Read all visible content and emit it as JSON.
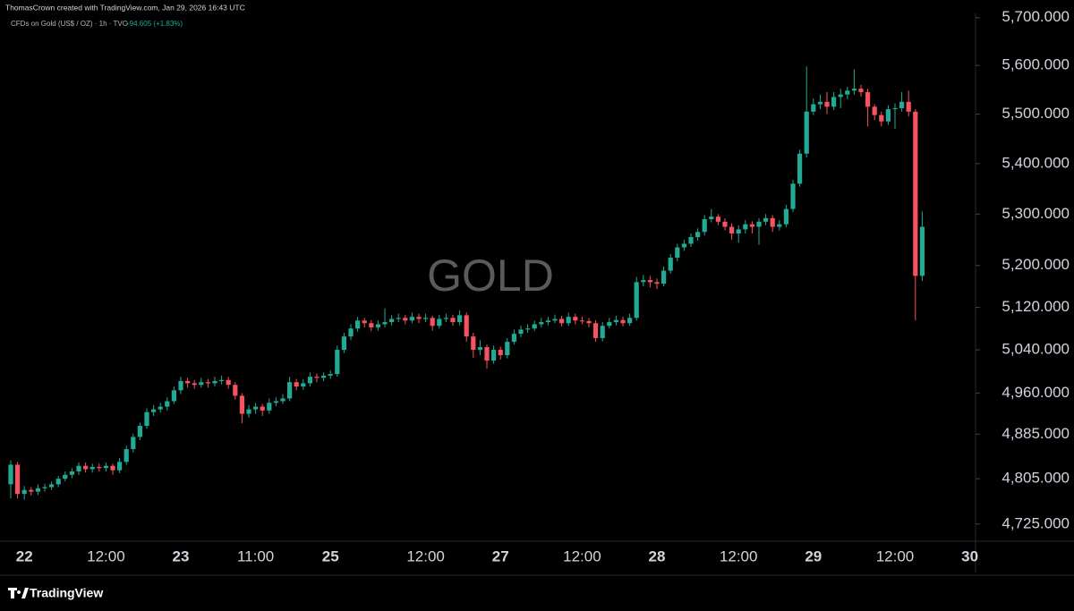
{
  "header": {
    "credit": "ThomasCrown created with TradingView.com, Jan 29, 2026 16:43 UTC",
    "symbol": "CFDs on Gold (US$ / OZ) · 1h · TVC",
    "change": "+94.605 (+1.83%)"
  },
  "footer": {
    "brand": "TradingView"
  },
  "chart_data": {
    "type": "candlestick",
    "title": "GOLD",
    "up_color": "#22ab94",
    "down_color": "#f7525f",
    "log_scale": true,
    "ylim": [
      4695,
      5709
    ],
    "yticks": [
      {
        "value": 4725,
        "label": "4,725.000"
      },
      {
        "value": 4805,
        "label": "4,805.000"
      },
      {
        "value": 4885,
        "label": "4,885.000"
      },
      {
        "value": 4960,
        "label": "4,960.000"
      },
      {
        "value": 5040,
        "label": "5,040.000"
      },
      {
        "value": 5120,
        "label": "5,120.000"
      },
      {
        "value": 5200,
        "label": "5,200.000"
      },
      {
        "value": 5300,
        "label": "5,300.000"
      },
      {
        "value": 5400,
        "label": "5,400.000"
      },
      {
        "value": 5500,
        "label": "5,500.000"
      },
      {
        "value": 5600,
        "label": "5,600.000"
      },
      {
        "value": 5700,
        "label": "5,700.000"
      }
    ],
    "categories": [
      null,
      null,
      "22",
      null,
      null,
      null,
      null,
      null,
      null,
      null,
      null,
      null,
      null,
      null,
      "12:00",
      null,
      null,
      null,
      null,
      null,
      null,
      null,
      null,
      null,
      null,
      "23",
      null,
      null,
      null,
      null,
      null,
      null,
      null,
      null,
      null,
      null,
      "11:00",
      null,
      null,
      null,
      null,
      null,
      null,
      null,
      null,
      null,
      null,
      "25",
      null,
      null,
      null,
      null,
      null,
      null,
      null,
      null,
      null,
      null,
      null,
      null,
      null,
      "12:00",
      null,
      null,
      null,
      null,
      null,
      null,
      null,
      null,
      null,
      null,
      "27",
      null,
      null,
      null,
      null,
      null,
      null,
      null,
      null,
      null,
      null,
      null,
      "12:00",
      null,
      null,
      null,
      null,
      null,
      null,
      null,
      null,
      null,
      null,
      "28",
      null,
      null,
      null,
      null,
      null,
      null,
      null,
      null,
      null,
      null,
      null,
      "12:00",
      null,
      null,
      null,
      null,
      null,
      null,
      null,
      null,
      null,
      null,
      "29",
      null,
      null,
      null,
      null,
      null,
      null,
      null,
      null,
      null,
      null,
      null,
      "12:00",
      null,
      null,
      null,
      null,
      null,
      null,
      null,
      null,
      null,
      null,
      "30"
    ],
    "ohlc": [
      [
        4795,
        4838,
        4770,
        4830
      ],
      [
        4830,
        4835,
        4770,
        4778
      ],
      [
        4778,
        4792,
        4768,
        4785
      ],
      [
        4785,
        4790,
        4775,
        4782
      ],
      [
        4782,
        4795,
        4776,
        4788
      ],
      [
        4788,
        4796,
        4782,
        4790
      ],
      [
        4790,
        4800,
        4785,
        4795
      ],
      [
        4795,
        4810,
        4790,
        4805
      ],
      [
        4805,
        4818,
        4800,
        4812
      ],
      [
        4812,
        4824,
        4806,
        4818
      ],
      [
        4818,
        4834,
        4812,
        4828
      ],
      [
        4828,
        4834,
        4816,
        4822
      ],
      [
        4822,
        4832,
        4816,
        4826
      ],
      [
        4826,
        4832,
        4818,
        4824
      ],
      [
        4824,
        4834,
        4818,
        4828
      ],
      [
        4828,
        4832,
        4812,
        4820
      ],
      [
        4820,
        4842,
        4815,
        4835
      ],
      [
        4835,
        4864,
        4830,
        4858
      ],
      [
        4858,
        4886,
        4852,
        4880
      ],
      [
        4880,
        4906,
        4874,
        4900
      ],
      [
        4900,
        4932,
        4895,
        4925
      ],
      [
        4925,
        4938,
        4918,
        4930
      ],
      [
        4930,
        4942,
        4924,
        4935
      ],
      [
        4935,
        4952,
        4928,
        4945
      ],
      [
        4945,
        4972,
        4940,
        4965
      ],
      [
        4965,
        4990,
        4958,
        4982
      ],
      [
        4982,
        4988,
        4970,
        4978
      ],
      [
        4978,
        4984,
        4968,
        4975
      ],
      [
        4975,
        4988,
        4970,
        4980
      ],
      [
        4980,
        4986,
        4970,
        4978
      ],
      [
        4978,
        4990,
        4972,
        4982
      ],
      [
        4982,
        4992,
        4976,
        4984
      ],
      [
        4984,
        4990,
        4968,
        4975
      ],
      [
        4975,
        4980,
        4948,
        4955
      ],
      [
        4955,
        4960,
        4905,
        4922
      ],
      [
        4922,
        4938,
        4915,
        4930
      ],
      [
        4930,
        4942,
        4922,
        4935
      ],
      [
        4935,
        4940,
        4918,
        4928
      ],
      [
        4928,
        4950,
        4922,
        4942
      ],
      [
        4942,
        4952,
        4936,
        4945
      ],
      [
        4945,
        4958,
        4940,
        4950
      ],
      [
        4950,
        4990,
        4945,
        4980
      ],
      [
        4980,
        4986,
        4965,
        4972
      ],
      [
        4972,
        4986,
        4966,
        4978
      ],
      [
        4978,
        4998,
        4972,
        4990
      ],
      [
        4990,
        4996,
        4980,
        4988
      ],
      [
        4988,
        4998,
        4982,
        4992
      ],
      [
        4992,
        5002,
        4986,
        4995
      ],
      [
        4995,
        5048,
        4990,
        5040
      ],
      [
        5040,
        5072,
        5034,
        5065
      ],
      [
        5065,
        5088,
        5058,
        5080
      ],
      [
        5080,
        5102,
        5074,
        5095
      ],
      [
        5095,
        5100,
        5082,
        5090
      ],
      [
        5090,
        5096,
        5075,
        5082
      ],
      [
        5082,
        5095,
        5076,
        5088
      ],
      [
        5088,
        5118,
        5082,
        5092
      ],
      [
        5092,
        5105,
        5086,
        5098
      ],
      [
        5098,
        5108,
        5092,
        5100
      ],
      [
        5100,
        5106,
        5088,
        5095
      ],
      [
        5095,
        5110,
        5090,
        5102
      ],
      [
        5102,
        5108,
        5090,
        5098
      ],
      [
        5098,
        5108,
        5092,
        5100
      ],
      [
        5100,
        5104,
        5076,
        5085
      ],
      [
        5085,
        5106,
        5080,
        5098
      ],
      [
        5098,
        5108,
        5092,
        5100
      ],
      [
        5100,
        5106,
        5085,
        5092
      ],
      [
        5092,
        5114,
        5086,
        5105
      ],
      [
        5105,
        5110,
        5055,
        5065
      ],
      [
        5065,
        5072,
        5025,
        5040
      ],
      [
        5040,
        5058,
        5030,
        5045
      ],
      [
        5045,
        5050,
        5005,
        5020
      ],
      [
        5020,
        5048,
        5014,
        5040
      ],
      [
        5040,
        5046,
        5022,
        5030
      ],
      [
        5030,
        5062,
        5024,
        5055
      ],
      [
        5055,
        5078,
        5050,
        5070
      ],
      [
        5070,
        5085,
        5064,
        5078
      ],
      [
        5078,
        5088,
        5072,
        5080
      ],
      [
        5080,
        5095,
        5075,
        5088
      ],
      [
        5088,
        5100,
        5082,
        5092
      ],
      [
        5092,
        5102,
        5086,
        5095
      ],
      [
        5095,
        5106,
        5090,
        5098
      ],
      [
        5098,
        5104,
        5084,
        5090
      ],
      [
        5090,
        5110,
        5085,
        5102
      ],
      [
        5102,
        5108,
        5088,
        5095
      ],
      [
        5095,
        5102,
        5088,
        5094
      ],
      [
        5094,
        5100,
        5082,
        5090
      ],
      [
        5090,
        5096,
        5055,
        5062
      ],
      [
        5062,
        5092,
        5056,
        5085
      ],
      [
        5085,
        5100,
        5080,
        5092
      ],
      [
        5092,
        5104,
        5086,
        5096
      ],
      [
        5096,
        5102,
        5084,
        5090
      ],
      [
        5090,
        5108,
        5085,
        5100
      ],
      [
        5100,
        5178,
        5095,
        5168
      ],
      [
        5168,
        5182,
        5160,
        5172
      ],
      [
        5172,
        5180,
        5158,
        5168
      ],
      [
        5168,
        5175,
        5155,
        5165
      ],
      [
        5165,
        5198,
        5160,
        5190
      ],
      [
        5190,
        5222,
        5184,
        5215
      ],
      [
        5215,
        5242,
        5208,
        5235
      ],
      [
        5235,
        5250,
        5228,
        5242
      ],
      [
        5242,
        5262,
        5236,
        5255
      ],
      [
        5255,
        5272,
        5248,
        5265
      ],
      [
        5265,
        5298,
        5258,
        5290
      ],
      [
        5290,
        5310,
        5284,
        5295
      ],
      [
        5295,
        5300,
        5278,
        5285
      ],
      [
        5285,
        5292,
        5268,
        5275
      ],
      [
        5275,
        5282,
        5250,
        5262
      ],
      [
        5262,
        5278,
        5244,
        5270
      ],
      [
        5270,
        5288,
        5262,
        5280
      ],
      [
        5280,
        5286,
        5262,
        5275
      ],
      [
        5275,
        5292,
        5240,
        5285
      ],
      [
        5285,
        5300,
        5278,
        5292
      ],
      [
        5292,
        5298,
        5265,
        5275
      ],
      [
        5275,
        5288,
        5268,
        5280
      ],
      [
        5280,
        5318,
        5274,
        5310
      ],
      [
        5310,
        5368,
        5304,
        5360
      ],
      [
        5360,
        5428,
        5354,
        5420
      ],
      [
        5420,
        5598,
        5412,
        5505
      ],
      [
        5505,
        5532,
        5498,
        5520
      ],
      [
        5520,
        5540,
        5510,
        5525
      ],
      [
        5525,
        5545,
        5500,
        5515
      ],
      [
        5515,
        5545,
        5508,
        5535
      ],
      [
        5535,
        5552,
        5512,
        5540
      ],
      [
        5540,
        5556,
        5530,
        5548
      ],
      [
        5548,
        5592,
        5540,
        5552
      ],
      [
        5552,
        5560,
        5536,
        5545
      ],
      [
        5545,
        5552,
        5475,
        5515
      ],
      [
        5515,
        5520,
        5488,
        5498
      ],
      [
        5498,
        5505,
        5475,
        5485
      ],
      [
        5485,
        5518,
        5478,
        5510
      ],
      [
        5510,
        5522,
        5470,
        5512
      ],
      [
        5512,
        5545,
        5505,
        5525
      ],
      [
        5525,
        5548,
        5495,
        5505
      ],
      [
        5505,
        5510,
        5095,
        5180
      ],
      [
        5180,
        5305,
        5170,
        5275
      ],
      null,
      null,
      null,
      null,
      null,
      null,
      null
    ]
  }
}
